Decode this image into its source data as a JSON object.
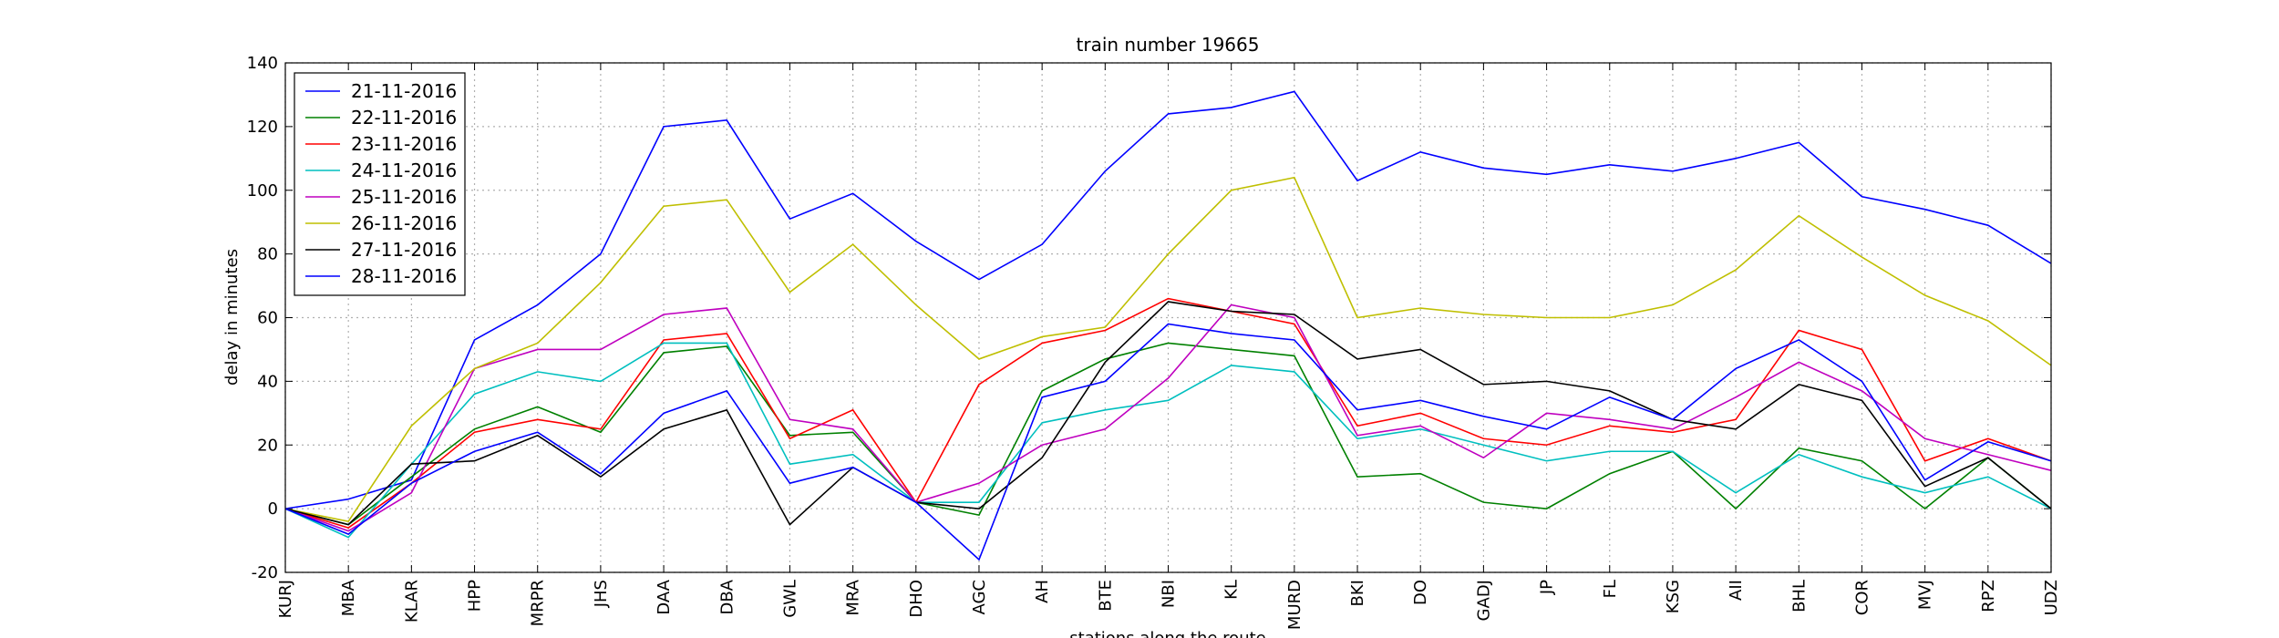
{
  "chart_data": {
    "type": "line",
    "title": "train number 19665",
    "xlabel": "stations along the route",
    "ylabel": "delay in minutes",
    "categories": [
      "KURJ",
      "MBA",
      "KLAR",
      "HPP",
      "MRPR",
      "JHS",
      "DAA",
      "DBA",
      "GWL",
      "MRA",
      "DHO",
      "AGC",
      "AH",
      "BTE",
      "NBI",
      "KL",
      "MURD",
      "BKI",
      "DO",
      "GADJ",
      "JP",
      "FL",
      "KSG",
      "AII",
      "BHL",
      "COR",
      "MVJ",
      "RPZ",
      "UDZ"
    ],
    "ylim": [
      -20,
      140
    ],
    "yticks": [
      -20,
      0,
      20,
      40,
      60,
      80,
      100,
      120,
      140
    ],
    "grid": true,
    "legend": "upper left",
    "series": [
      {
        "name": "21-11-2016",
        "color": "#0000ff",
        "values": [
          0,
          3,
          9,
          53,
          64,
          80,
          120,
          122,
          91,
          99,
          84,
          72,
          83,
          106,
          124,
          126,
          131,
          103,
          112,
          107,
          105,
          108,
          106,
          110,
          115,
          98,
          94,
          89,
          77
        ]
      },
      {
        "name": "22-11-2016",
        "color": "#008000",
        "values": [
          0,
          -5,
          10,
          25,
          32,
          24,
          49,
          51,
          23,
          24,
          2,
          -2,
          37,
          47,
          52,
          50,
          48,
          10,
          11,
          2,
          0,
          11,
          18,
          0,
          19,
          15,
          0,
          16,
          0
        ]
      },
      {
        "name": "23-11-2016",
        "color": "#ff0000",
        "values": [
          0,
          -6,
          8,
          24,
          28,
          25,
          53,
          55,
          22,
          31,
          2,
          39,
          52,
          56,
          66,
          62,
          58,
          26,
          30,
          22,
          20,
          26,
          24,
          28,
          56,
          50,
          15,
          22,
          15
        ]
      },
      {
        "name": "24-11-2016",
        "color": "#00bfbf",
        "values": [
          0,
          -9,
          14,
          36,
          43,
          40,
          52,
          52,
          14,
          17,
          2,
          2,
          27,
          31,
          34,
          45,
          43,
          22,
          25,
          20,
          15,
          18,
          18,
          5,
          17,
          10,
          5,
          10,
          0
        ]
      },
      {
        "name": "25-11-2016",
        "color": "#bf00bf",
        "values": [
          0,
          -7,
          5,
          44,
          50,
          50,
          61,
          63,
          28,
          25,
          2,
          8,
          20,
          25,
          41,
          64,
          60,
          23,
          26,
          16,
          30,
          28,
          25,
          35,
          46,
          37,
          22,
          17,
          12
        ]
      },
      {
        "name": "26-11-2016",
        "color": "#bfbf00",
        "values": [
          0,
          -4,
          26,
          44,
          52,
          71,
          95,
          97,
          68,
          83,
          64,
          47,
          54,
          57,
          80,
          100,
          104,
          60,
          63,
          61,
          60,
          60,
          64,
          75,
          92,
          79,
          67,
          59,
          45
        ]
      },
      {
        "name": "27-11-2016",
        "color": "#000000",
        "values": [
          0,
          -5,
          14,
          15,
          23,
          10,
          25,
          31,
          -5,
          13,
          2,
          0,
          16,
          46,
          65,
          62,
          61,
          47,
          50,
          39,
          40,
          37,
          28,
          25,
          39,
          34,
          7,
          16,
          0
        ]
      },
      {
        "name": "28-11-2016",
        "color": "#0000ff",
        "values": [
          0,
          -8,
          8,
          18,
          24,
          11,
          30,
          37,
          8,
          13,
          2,
          -16,
          35,
          40,
          58,
          55,
          53,
          31,
          34,
          29,
          25,
          35,
          28,
          44,
          53,
          40,
          9,
          21,
          15
        ]
      }
    ]
  }
}
